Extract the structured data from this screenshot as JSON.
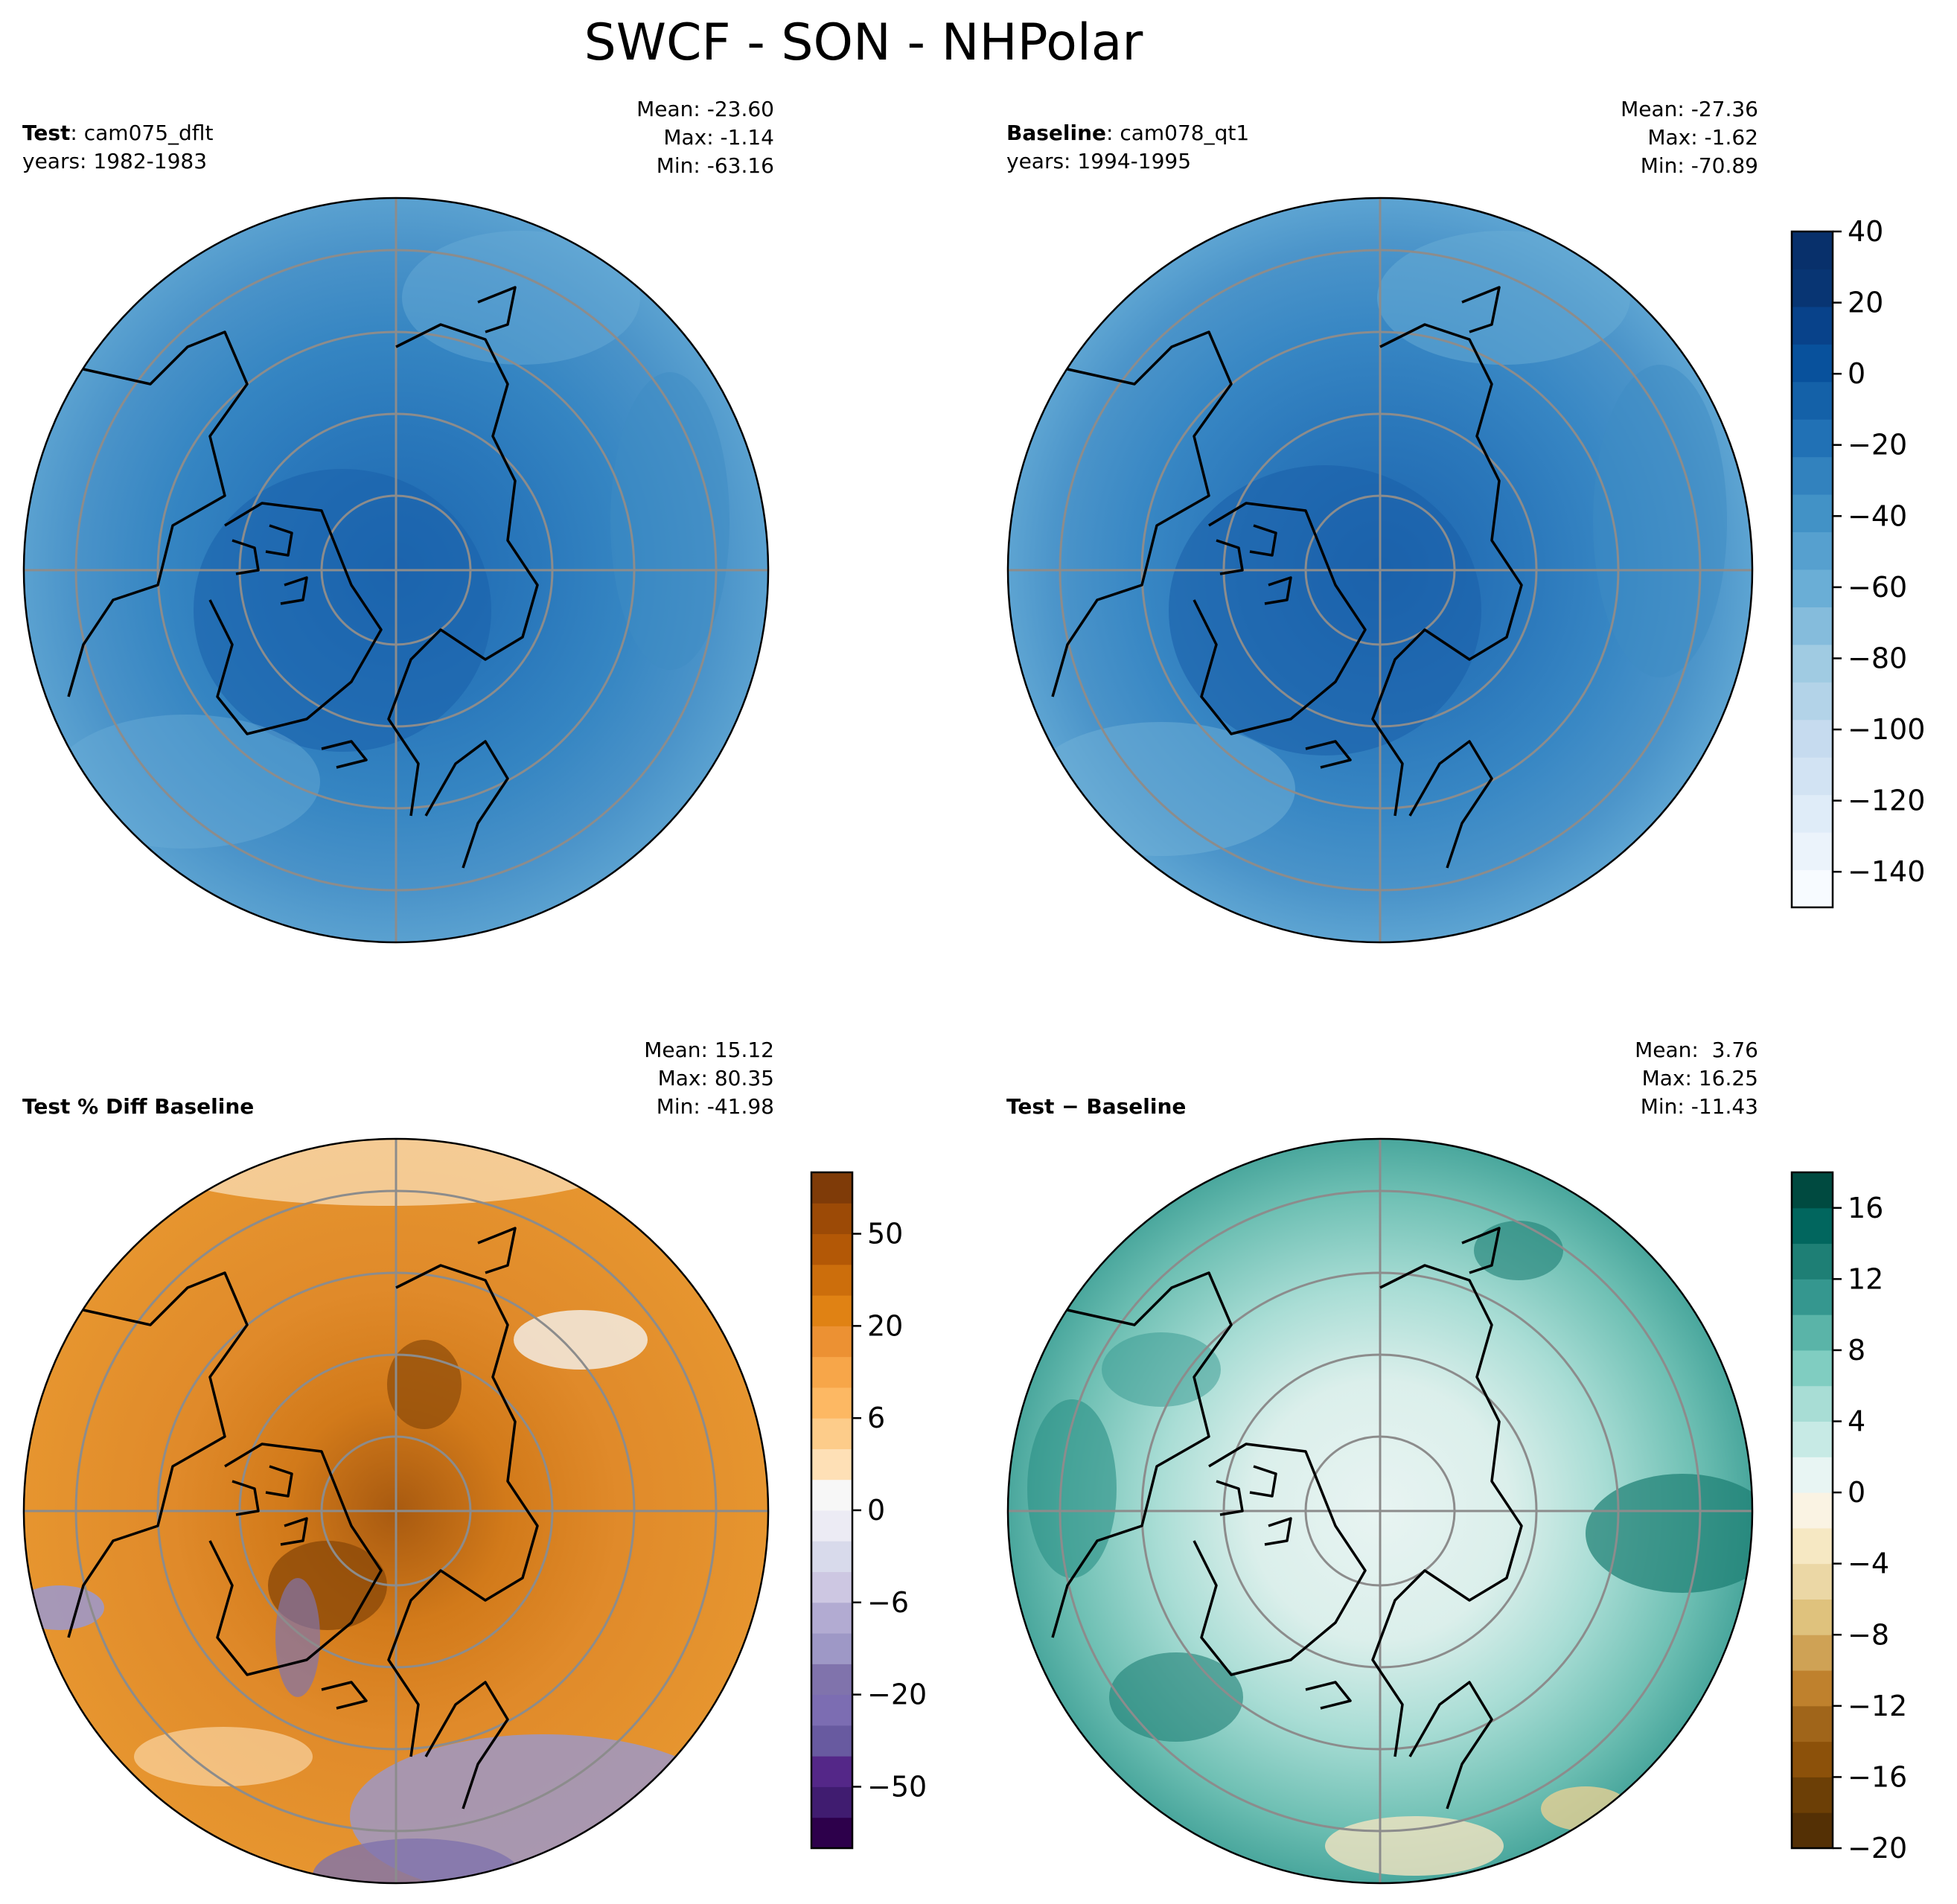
{
  "title": "SWCF - SON - NHPolar",
  "panels": [
    {
      "id": "test",
      "bold_label": "Test",
      "label_rest": ": cam075_dflt",
      "years": "years: 1982-1983",
      "stats": [
        "Mean: -23.60",
        "Max: -1.14",
        "Min: -63.16"
      ]
    },
    {
      "id": "baseline",
      "bold_label": "Baseline",
      "label_rest": ": cam078_qt1",
      "years": "years: 1994-1995",
      "stats": [
        "Mean: -27.36",
        "Max: -1.62",
        "Min: -70.89"
      ]
    },
    {
      "id": "pctdiff",
      "bold_label": "Test % Diff Baseline",
      "label_rest": "",
      "years": "",
      "stats": [
        "Mean: 15.12",
        "Max: 80.35",
        "Min: -41.98"
      ]
    },
    {
      "id": "diff",
      "bold_label": "Test − Baseline",
      "label_rest": "",
      "years": "",
      "stats": [
        "Mean:  3.76",
        "Max: 16.25",
        "Min: -11.43"
      ]
    }
  ],
  "chart_data": [
    {
      "type": "heatmap",
      "projection": "north polar stereographic",
      "panel": "Test",
      "case": "cam075_dflt",
      "years": "1982-1983",
      "mean": -23.6,
      "max": -1.14,
      "min": -63.16
    },
    {
      "type": "heatmap",
      "projection": "north polar stereographic",
      "panel": "Baseline",
      "case": "cam078_qt1",
      "years": "1994-1995",
      "mean": -27.36,
      "max": -1.62,
      "min": -70.89
    },
    {
      "type": "heatmap",
      "projection": "north polar stereographic",
      "panel": "Test % Diff Baseline",
      "mean": 15.12,
      "max": 80.35,
      "min": -41.98
    },
    {
      "type": "heatmap",
      "projection": "north polar stereographic",
      "panel": "Test − Baseline",
      "mean": 3.76,
      "max": 16.25,
      "min": -11.43
    }
  ],
  "colorbars": {
    "main": {
      "range": [
        -150,
        40
      ],
      "ticks": [
        "40",
        "20",
        "0",
        "−20",
        "−40",
        "−60",
        "−80",
        "−100",
        "−120",
        "−140"
      ],
      "tick_values": [
        40,
        20,
        0,
        -20,
        -40,
        -60,
        -80,
        -100,
        -120,
        -140
      ],
      "colors": [
        "#f7fbff",
        "#ebf3fb",
        "#dfecf8",
        "#d2e3f3",
        "#c6dbef",
        "#b3d3e8",
        "#a0cbe2",
        "#85bcdc",
        "#6aaed6",
        "#56a0cf",
        "#4292c6",
        "#3282be",
        "#2171b5",
        "#1461a8",
        "#08519c",
        "#08428a",
        "#083573",
        "#08306b"
      ]
    },
    "pct": {
      "range": [
        -75,
        75
      ],
      "ticks": [
        "50",
        "20",
        "6",
        "0",
        "−6",
        "−20",
        "−50"
      ],
      "tick_values": [
        50,
        20,
        6,
        0,
        -6,
        -20,
        -50
      ],
      "levels": [
        -75,
        -65,
        -50,
        -40,
        -30,
        -20,
        -15,
        -10,
        -6,
        -4,
        -2,
        0,
        2,
        4,
        6,
        10,
        15,
        20,
        30,
        40,
        50,
        65,
        75
      ],
      "colors": [
        "#2d004b",
        "#401c70",
        "#542788",
        "#685aa0",
        "#7c6db2",
        "#8073ac",
        "#9e98c6",
        "#b2abd2",
        "#cdc7e2",
        "#d8daeb",
        "#ecebf4",
        "#f7f7f7",
        "#fee0b6",
        "#fdcc8a",
        "#fdb863",
        "#f7a649",
        "#ec9133",
        "#e08214",
        "#cc6e0c",
        "#b35806",
        "#9c4a06",
        "#7f3b08"
      ]
    },
    "diff": {
      "range": [
        -20,
        18
      ],
      "ticks": [
        "16",
        "12",
        "8",
        "4",
        "0",
        "−4",
        "−8",
        "−12",
        "−16",
        "−20"
      ],
      "tick_values": [
        16,
        12,
        8,
        4,
        0,
        -4,
        -8,
        -12,
        -16,
        -20
      ],
      "colors": [
        "#543005",
        "#6c3f06",
        "#8c510a",
        "#a0651a",
        "#bf812d",
        "#cfa255",
        "#dfc27d",
        "#ebd7a5",
        "#f6e8c3",
        "#faf3e3",
        "#e8f5f3",
        "#c7eae5",
        "#a8ddd5",
        "#80cdc1",
        "#5ab4a8",
        "#35978f",
        "#1e7f75",
        "#01665e",
        "#004a40"
      ]
    }
  }
}
